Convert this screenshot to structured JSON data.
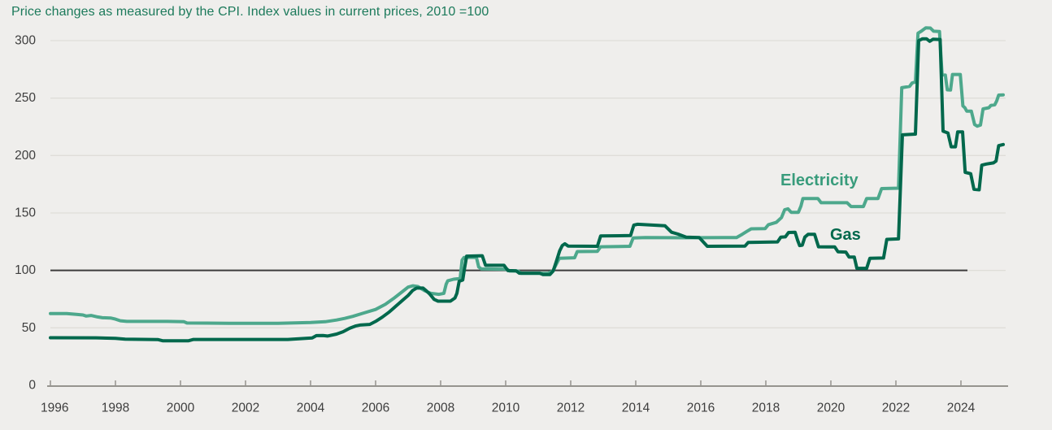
{
  "page": {
    "background_color": "#efeeec",
    "gridline_color": "#dfddd9",
    "axis_color": "#96948f",
    "tick_label_color": "#3e3e3e",
    "reference_line_color": "#3c3c3c"
  },
  "chart_data": {
    "type": "line",
    "title": "Price changes as measured by the CPI. Index values in current prices, 2010 =100",
    "title_color": "#1c7a5b",
    "xlabel": "",
    "ylabel": "",
    "x_axis": {
      "tick_labels": [
        "1996",
        "1998",
        "2000",
        "2002",
        "2004",
        "2006",
        "2008",
        "2010",
        "2012",
        "2014",
        "2016",
        "2018",
        "2020",
        "2022",
        "2024"
      ],
      "tick_years": [
        1996,
        1998,
        2000,
        2002,
        2004,
        2006,
        2008,
        2010,
        2012,
        2014,
        2016,
        2018,
        2020,
        2022,
        2024
      ],
      "range": [
        1996,
        2025.45
      ]
    },
    "y_axis": {
      "tick_labels": [
        "0",
        "50",
        "100",
        "150",
        "200",
        "250",
        "300"
      ],
      "tick_values": [
        0,
        50,
        100,
        150,
        200,
        250,
        300
      ],
      "range": [
        0,
        300
      ],
      "reference_line_value": 100
    },
    "grid": true,
    "legend_position": "inline-labels-right",
    "series": [
      {
        "name": "Electricity",
        "color": "#4da88c",
        "label_color": "#399c7c",
        "points": [
          [
            1996.0,
            62.5
          ],
          [
            1996.5,
            62.5
          ],
          [
            1996.8,
            61.8
          ],
          [
            1997.0,
            61.2
          ],
          [
            1997.1,
            60.3
          ],
          [
            1997.25,
            60.8
          ],
          [
            1997.45,
            59.5
          ],
          [
            1997.6,
            58.8
          ],
          [
            1997.85,
            58.6
          ],
          [
            1998.0,
            57.6
          ],
          [
            1998.15,
            56.2
          ],
          [
            1998.35,
            55.6
          ],
          [
            1999.6,
            55.6
          ],
          [
            2000.1,
            55.4
          ],
          [
            2000.2,
            54.2
          ],
          [
            2001.5,
            54.0
          ],
          [
            2003.0,
            53.9
          ],
          [
            2004.0,
            54.6
          ],
          [
            2004.45,
            55.3
          ],
          [
            2004.8,
            56.8
          ],
          [
            2005.05,
            58.2
          ],
          [
            2005.3,
            60.0
          ],
          [
            2005.6,
            62.6
          ],
          [
            2006.0,
            66.0
          ],
          [
            2006.3,
            70.5
          ],
          [
            2006.55,
            75.5
          ],
          [
            2006.8,
            81.0
          ],
          [
            2007.0,
            85.5
          ],
          [
            2007.15,
            86.6
          ],
          [
            2007.3,
            86.0
          ],
          [
            2007.5,
            82.5
          ],
          [
            2007.7,
            80.0
          ],
          [
            2007.95,
            79.2
          ],
          [
            2008.1,
            80.0
          ],
          [
            2008.17,
            88.0
          ],
          [
            2008.22,
            91.0
          ],
          [
            2008.4,
            92.3
          ],
          [
            2008.6,
            93.0
          ],
          [
            2008.66,
            109.0
          ],
          [
            2008.72,
            111.3
          ],
          [
            2009.1,
            111.4
          ],
          [
            2009.17,
            103.0
          ],
          [
            2009.25,
            101.3
          ],
          [
            2010.05,
            101.0
          ],
          [
            2010.12,
            99.5
          ],
          [
            2010.38,
            99.4
          ],
          [
            2010.48,
            97.4
          ],
          [
            2011.3,
            97.4
          ],
          [
            2011.45,
            99.5
          ],
          [
            2011.55,
            105.0
          ],
          [
            2011.65,
            110.6
          ],
          [
            2012.12,
            111.0
          ],
          [
            2012.2,
            116.4
          ],
          [
            2012.82,
            116.6
          ],
          [
            2012.92,
            120.6
          ],
          [
            2013.82,
            121.0
          ],
          [
            2013.92,
            128.2
          ],
          [
            2014.3,
            128.6
          ],
          [
            2015.5,
            128.4
          ],
          [
            2017.1,
            128.6
          ],
          [
            2017.28,
            131.5
          ],
          [
            2017.42,
            134.0
          ],
          [
            2017.55,
            136.2
          ],
          [
            2017.98,
            136.4
          ],
          [
            2018.08,
            139.8
          ],
          [
            2018.32,
            141.8
          ],
          [
            2018.48,
            146.0
          ],
          [
            2018.58,
            152.8
          ],
          [
            2018.68,
            153.6
          ],
          [
            2018.78,
            150.6
          ],
          [
            2019.0,
            150.6
          ],
          [
            2019.08,
            156.0
          ],
          [
            2019.14,
            162.6
          ],
          [
            2019.6,
            162.6
          ],
          [
            2019.7,
            158.9
          ],
          [
            2020.5,
            158.9
          ],
          [
            2020.62,
            155.6
          ],
          [
            2021.0,
            155.6
          ],
          [
            2021.1,
            162.5
          ],
          [
            2021.45,
            162.6
          ],
          [
            2021.56,
            171.2
          ],
          [
            2022.08,
            171.6
          ],
          [
            2022.18,
            259.0
          ],
          [
            2022.42,
            260.2
          ],
          [
            2022.5,
            263.2
          ],
          [
            2022.6,
            264.0
          ],
          [
            2022.68,
            306.5
          ],
          [
            2022.78,
            308.2
          ],
          [
            2022.92,
            311.2
          ],
          [
            2023.06,
            311.0
          ],
          [
            2023.16,
            308.2
          ],
          [
            2023.34,
            308.0
          ],
          [
            2023.42,
            270.3
          ],
          [
            2023.52,
            270.0
          ],
          [
            2023.58,
            257.2
          ],
          [
            2023.68,
            257.0
          ],
          [
            2023.74,
            270.6
          ],
          [
            2023.98,
            270.6
          ],
          [
            2024.06,
            243.2
          ],
          [
            2024.12,
            241.6
          ],
          [
            2024.18,
            238.6
          ],
          [
            2024.32,
            238.6
          ],
          [
            2024.42,
            227.0
          ],
          [
            2024.5,
            225.6
          ],
          [
            2024.6,
            226.5
          ],
          [
            2024.68,
            240.6
          ],
          [
            2024.86,
            241.6
          ],
          [
            2024.92,
            243.6
          ],
          [
            2025.04,
            244.2
          ],
          [
            2025.1,
            247.6
          ],
          [
            2025.16,
            252.6
          ],
          [
            2025.3,
            252.8
          ]
        ]
      },
      {
        "name": "Gas",
        "color": "#00684c",
        "label_color": "#00684c",
        "points": [
          [
            1996.0,
            41.4
          ],
          [
            1997.4,
            41.3
          ],
          [
            1998.0,
            40.8
          ],
          [
            1998.3,
            40.1
          ],
          [
            1999.3,
            39.8
          ],
          [
            1999.45,
            38.8
          ],
          [
            2000.25,
            38.8
          ],
          [
            2000.4,
            39.9
          ],
          [
            2003.3,
            39.9
          ],
          [
            2003.6,
            40.4
          ],
          [
            2004.05,
            41.2
          ],
          [
            2004.18,
            43.2
          ],
          [
            2004.38,
            43.3
          ],
          [
            2004.52,
            42.9
          ],
          [
            2004.8,
            44.6
          ],
          [
            2005.0,
            46.6
          ],
          [
            2005.2,
            49.6
          ],
          [
            2005.38,
            51.6
          ],
          [
            2005.52,
            52.4
          ],
          [
            2005.82,
            53.0
          ],
          [
            2006.0,
            55.6
          ],
          [
            2006.2,
            59.2
          ],
          [
            2006.42,
            63.8
          ],
          [
            2006.62,
            68.8
          ],
          [
            2006.82,
            73.8
          ],
          [
            2007.0,
            78.2
          ],
          [
            2007.14,
            82.6
          ],
          [
            2007.26,
            84.6
          ],
          [
            2007.46,
            84.6
          ],
          [
            2007.56,
            82.2
          ],
          [
            2007.66,
            79.6
          ],
          [
            2007.8,
            74.8
          ],
          [
            2007.92,
            73.2
          ],
          [
            2008.3,
            73.2
          ],
          [
            2008.44,
            76.0
          ],
          [
            2008.5,
            80.0
          ],
          [
            2008.57,
            90.6
          ],
          [
            2008.68,
            91.6
          ],
          [
            2008.73,
            101.0
          ],
          [
            2008.8,
            112.4
          ],
          [
            2009.28,
            112.8
          ],
          [
            2009.38,
            104.4
          ],
          [
            2009.95,
            104.4
          ],
          [
            2010.07,
            99.8
          ],
          [
            2010.32,
            99.7
          ],
          [
            2010.42,
            97.6
          ],
          [
            2011.05,
            97.6
          ],
          [
            2011.15,
            96.4
          ],
          [
            2011.36,
            96.4
          ],
          [
            2011.46,
            99.5
          ],
          [
            2011.56,
            108.0
          ],
          [
            2011.66,
            117.0
          ],
          [
            2011.74,
            121.6
          ],
          [
            2011.82,
            123.2
          ],
          [
            2011.92,
            121.2
          ],
          [
            2012.82,
            121.0
          ],
          [
            2012.92,
            130.0
          ],
          [
            2013.84,
            130.3
          ],
          [
            2013.94,
            139.4
          ],
          [
            2014.05,
            140.2
          ],
          [
            2014.9,
            138.8
          ],
          [
            2015.1,
            133.2
          ],
          [
            2015.3,
            131.6
          ],
          [
            2015.55,
            129.0
          ],
          [
            2015.95,
            128.6
          ],
          [
            2016.05,
            125.6
          ],
          [
            2016.2,
            121.0
          ],
          [
            2017.36,
            121.2
          ],
          [
            2017.46,
            124.4
          ],
          [
            2018.36,
            124.8
          ],
          [
            2018.46,
            129.0
          ],
          [
            2018.6,
            129.2
          ],
          [
            2018.7,
            133.0
          ],
          [
            2018.9,
            133.2
          ],
          [
            2018.98,
            126.0
          ],
          [
            2019.04,
            121.6
          ],
          [
            2019.12,
            122.0
          ],
          [
            2019.2,
            129.0
          ],
          [
            2019.3,
            131.4
          ],
          [
            2019.5,
            131.4
          ],
          [
            2019.62,
            120.6
          ],
          [
            2020.12,
            120.4
          ],
          [
            2020.22,
            116.2
          ],
          [
            2020.46,
            116.0
          ],
          [
            2020.56,
            111.6
          ],
          [
            2020.72,
            111.6
          ],
          [
            2020.8,
            101.9
          ],
          [
            2021.1,
            101.8
          ],
          [
            2021.2,
            110.6
          ],
          [
            2021.62,
            110.8
          ],
          [
            2021.72,
            127.0
          ],
          [
            2022.08,
            127.4
          ],
          [
            2022.2,
            218.0
          ],
          [
            2022.6,
            218.6
          ],
          [
            2022.7,
            300.0
          ],
          [
            2022.82,
            301.6
          ],
          [
            2022.94,
            301.6
          ],
          [
            2023.04,
            299.4
          ],
          [
            2023.14,
            301.2
          ],
          [
            2023.36,
            301.0
          ],
          [
            2023.45,
            221.2
          ],
          [
            2023.6,
            219.6
          ],
          [
            2023.7,
            207.6
          ],
          [
            2023.83,
            207.6
          ],
          [
            2023.9,
            220.6
          ],
          [
            2024.05,
            220.6
          ],
          [
            2024.13,
            185.4
          ],
          [
            2024.3,
            184.2
          ],
          [
            2024.4,
            170.6
          ],
          [
            2024.56,
            170.2
          ],
          [
            2024.64,
            191.6
          ],
          [
            2024.78,
            192.6
          ],
          [
            2025.0,
            193.6
          ],
          [
            2025.08,
            195.2
          ],
          [
            2025.16,
            208.6
          ],
          [
            2025.3,
            209.6
          ]
        ]
      }
    ]
  }
}
